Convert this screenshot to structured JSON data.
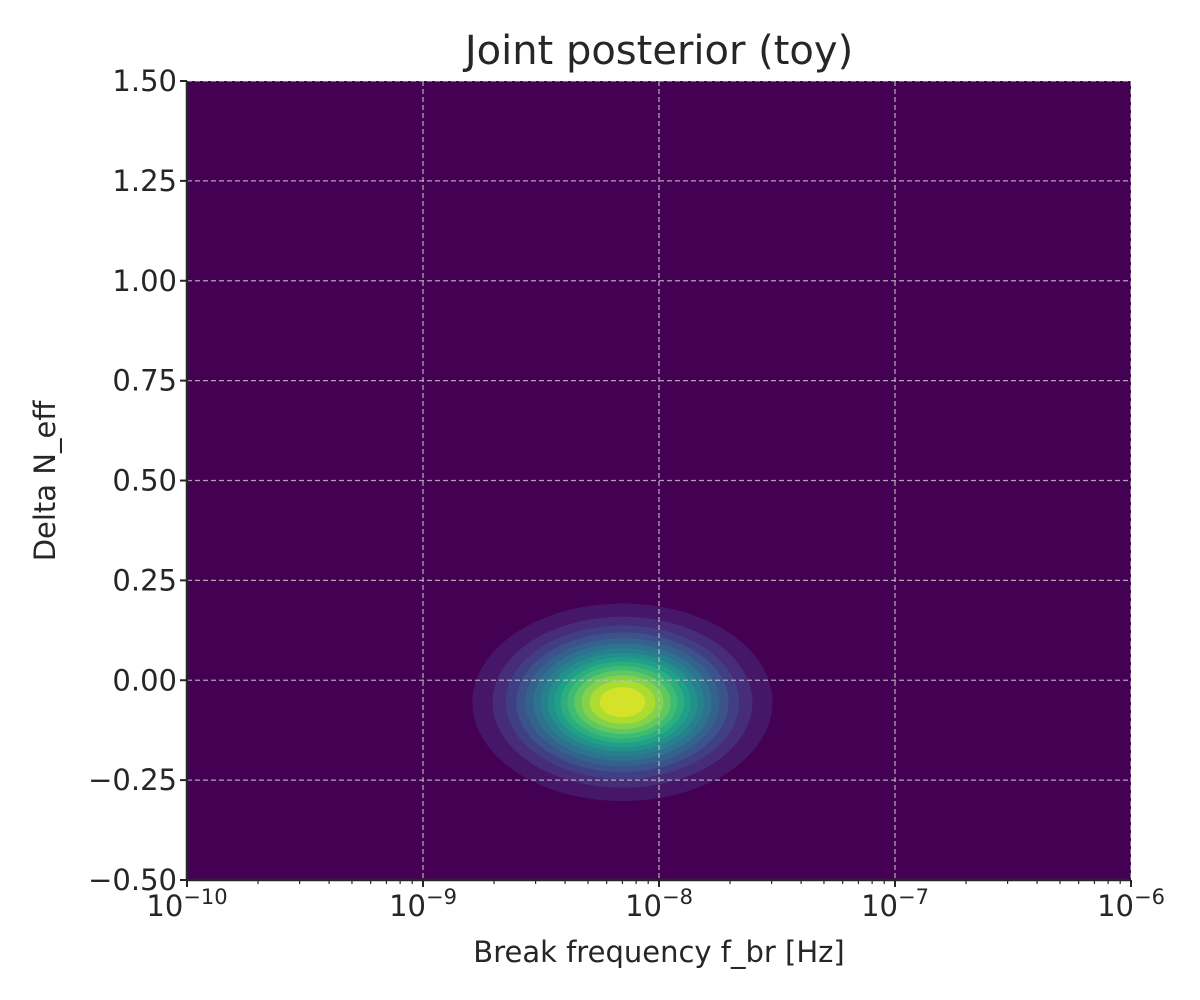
{
  "chart_data": {
    "type": "heatmap",
    "title": "Joint posterior (toy)",
    "xlabel": "Break frequency f_br [Hz]",
    "ylabel": "Delta N_eff",
    "x_scale": "log",
    "xlim": [
      1e-10,
      1e-06
    ],
    "ylim": [
      -0.5,
      1.5
    ],
    "x_ticks": [
      {
        "value": 1e-10,
        "base": "10",
        "exp": "−10"
      },
      {
        "value": 1e-09,
        "base": "10",
        "exp": "−9"
      },
      {
        "value": 1e-08,
        "base": "10",
        "exp": "−8"
      },
      {
        "value": 1e-07,
        "base": "10",
        "exp": "−7"
      },
      {
        "value": 1e-06,
        "base": "10",
        "exp": "−6"
      }
    ],
    "y_ticks": [
      {
        "value": -0.5,
        "label": "−0.50"
      },
      {
        "value": -0.25,
        "label": "−0.25"
      },
      {
        "value": 0.0,
        "label": "0.00"
      },
      {
        "value": 0.25,
        "label": "0.25"
      },
      {
        "value": 0.5,
        "label": "0.50"
      },
      {
        "value": 0.75,
        "label": "0.75"
      },
      {
        "value": 1.0,
        "label": "1.00"
      },
      {
        "value": 1.25,
        "label": "1.25"
      },
      {
        "value": 1.5,
        "label": "1.50"
      }
    ],
    "grid": true,
    "colormap": "viridis",
    "peak": {
      "f_br": 7e-09,
      "delta_neff": -0.055
    },
    "spread": {
      "log10_f_br_sigma": 0.27,
      "delta_neff_sigma": 0.105
    },
    "contour_levels": 15
  },
  "colors": {
    "background": "#440154",
    "grid": "#bfbfbf",
    "axes": "#262626",
    "peak": "#fde725"
  }
}
